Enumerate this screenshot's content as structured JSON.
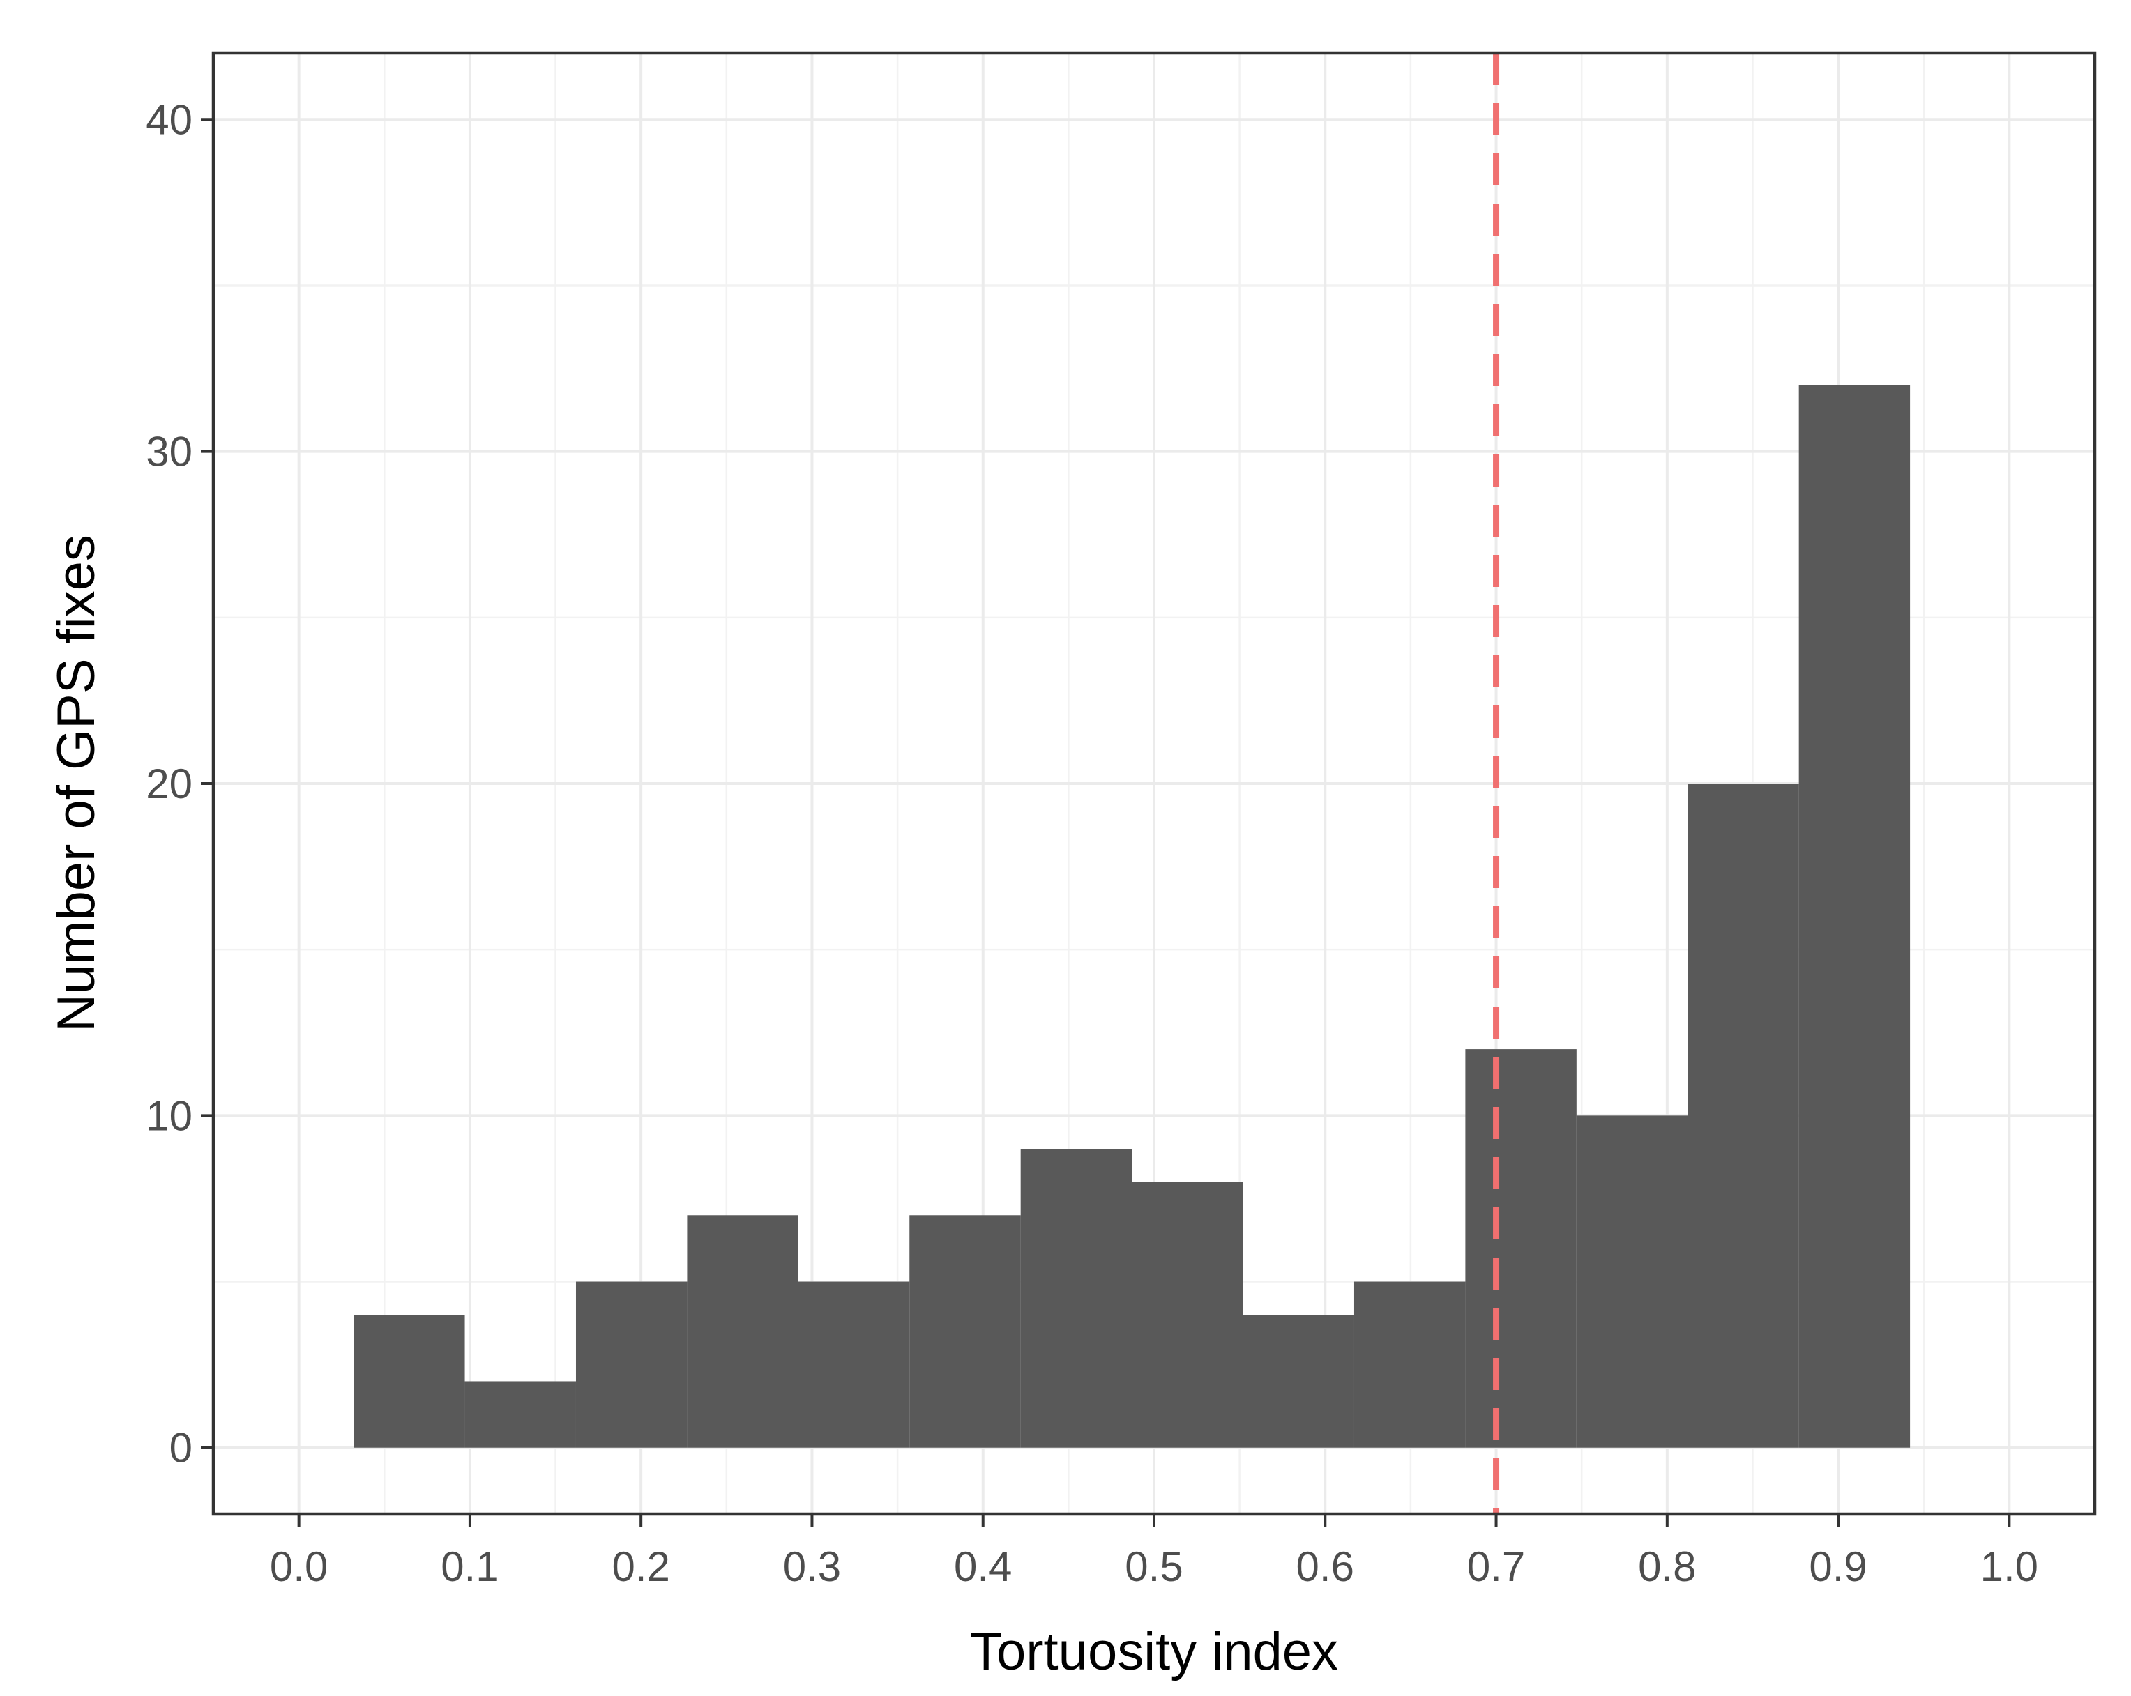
{
  "chart_data": {
    "type": "bar",
    "subtype": "histogram",
    "title": "",
    "xlabel": "Tortuosity index",
    "ylabel": "Number of GPS fixes",
    "xlim": [
      -0.05,
      1.05
    ],
    "ylim": [
      -2,
      42
    ],
    "xticks": [
      "0.0",
      "0.1",
      "0.2",
      "0.3",
      "0.4",
      "0.5",
      "0.6",
      "0.7",
      "0.8",
      "0.9",
      "1.0"
    ],
    "yticks": [
      "0",
      "10",
      "20",
      "30",
      "40"
    ],
    "bins": [
      {
        "x0": 0.032,
        "x1": 0.097,
        "count": 4
      },
      {
        "x0": 0.097,
        "x1": 0.162,
        "count": 2
      },
      {
        "x0": 0.162,
        "x1": 0.227,
        "count": 5
      },
      {
        "x0": 0.227,
        "x1": 0.292,
        "count": 7
      },
      {
        "x0": 0.292,
        "x1": 0.357,
        "count": 5
      },
      {
        "x0": 0.357,
        "x1": 0.422,
        "count": 7
      },
      {
        "x0": 0.422,
        "x1": 0.487,
        "count": 9
      },
      {
        "x0": 0.487,
        "x1": 0.552,
        "count": 8
      },
      {
        "x0": 0.552,
        "x1": 0.617,
        "count": 4
      },
      {
        "x0": 0.617,
        "x1": 0.682,
        "count": 5
      },
      {
        "x0": 0.682,
        "x1": 0.747,
        "count": 12
      },
      {
        "x0": 0.747,
        "x1": 0.812,
        "count": 10
      },
      {
        "x0": 0.812,
        "x1": 0.877,
        "count": 20
      },
      {
        "x0": 0.877,
        "x1": 0.942,
        "count": 32
      }
    ],
    "reference_line": {
      "x": 0.7,
      "style": "dashed"
    },
    "grid": true,
    "legend": "none",
    "colors": {
      "bar": "#595959",
      "reference_line": "#f07070",
      "panel_border": "#333333"
    }
  }
}
